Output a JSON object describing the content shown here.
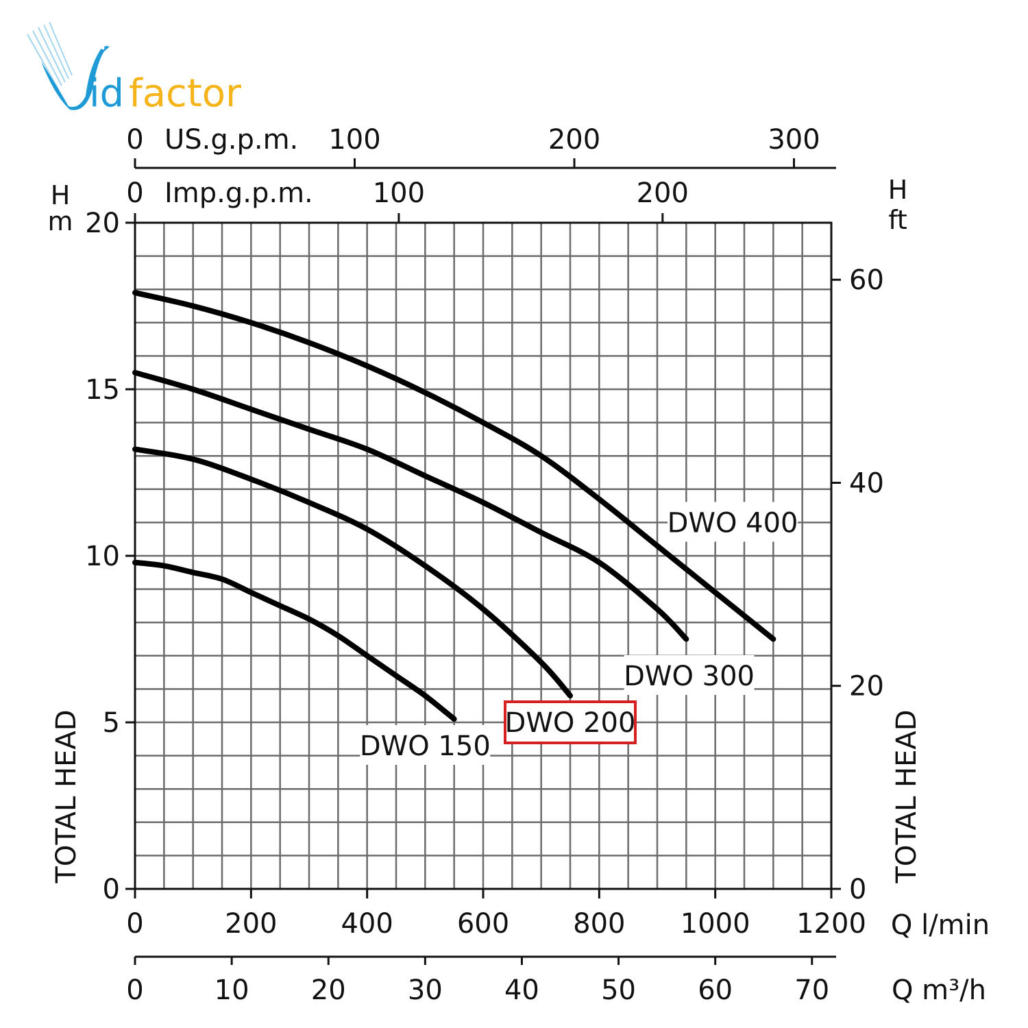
{
  "logo": {
    "text_prefix": "V",
    "text_blue": "id",
    "text_orange": "factor",
    "colors": {
      "blue": "#1E9BD7",
      "orange": "#F4B41A"
    }
  },
  "highlight": {
    "label": "DWO 200",
    "color": "#D42020"
  },
  "chart_data": {
    "type": "line",
    "title": "",
    "xlabel": "Q l/min",
    "ylabel": "H m — TOTAL HEAD",
    "xlim": [
      0,
      1200
    ],
    "ylim": [
      0,
      20
    ],
    "grid": true,
    "grid_step": {
      "x": 50,
      "y": 1
    },
    "x_ticks": [
      0,
      200,
      400,
      600,
      800,
      1000,
      1200
    ],
    "y_ticks": [
      0,
      5,
      10,
      15,
      20
    ],
    "secondary_axes": {
      "top_us": {
        "label": "US.g.p.m.",
        "ticks": [
          0,
          100,
          200,
          300
        ]
      },
      "top_imp": {
        "label": "Imp.g.p.m.",
        "ticks": [
          0,
          100,
          200
        ]
      },
      "bottom_m3h": {
        "label": "Q m³/h",
        "ticks": [
          0,
          10,
          20,
          30,
          40,
          50,
          60,
          70
        ]
      },
      "right_ft": {
        "label_top": "H",
        "label_unit": "ft",
        "ticks": [
          0,
          20,
          40,
          60
        ]
      }
    },
    "axis_labels": {
      "left_h": "H",
      "left_unit": "m",
      "left_vertical": "TOTAL HEAD",
      "right_vertical": "TOTAL HEAD",
      "bottom_q": "Q  l/min",
      "bottom_q2": "Q  m³/h"
    },
    "series": [
      {
        "name": "DWO 400",
        "x": [
          0,
          100,
          200,
          300,
          400,
          500,
          600,
          700,
          800,
          900,
          1000,
          1100
        ],
        "values": [
          17.9,
          17.5,
          17.0,
          16.4,
          15.7,
          14.9,
          14.0,
          13.0,
          11.7,
          10.3,
          8.9,
          7.5
        ]
      },
      {
        "name": "DWO 300",
        "x": [
          0,
          100,
          200,
          300,
          400,
          500,
          600,
          700,
          800,
          900,
          950
        ],
        "values": [
          15.5,
          15.0,
          14.4,
          13.8,
          13.2,
          12.4,
          11.6,
          10.7,
          9.8,
          8.4,
          7.5
        ]
      },
      {
        "name": "DWO 200",
        "x": [
          0,
          100,
          200,
          300,
          400,
          500,
          600,
          700,
          750
        ],
        "values": [
          13.2,
          12.9,
          12.3,
          11.6,
          10.8,
          9.7,
          8.4,
          6.8,
          5.8
        ]
      },
      {
        "name": "DWO 150",
        "x": [
          0,
          50,
          100,
          150,
          200,
          250,
          300,
          350,
          400,
          450,
          500,
          550
        ],
        "values": [
          9.8,
          9.7,
          9.5,
          9.3,
          8.9,
          8.5,
          8.1,
          7.6,
          7.0,
          6.4,
          5.8,
          5.1
        ]
      }
    ],
    "series_labels": [
      {
        "name": "DWO 400",
        "text": "DWO  400",
        "q": 1030,
        "h": 11.0
      },
      {
        "name": "DWO 300",
        "text": "DWO  300",
        "q": 955,
        "h": 6.4
      },
      {
        "name": "DWO 200",
        "text": "DWO  200",
        "q": 750,
        "h": 5.0
      },
      {
        "name": "DWO 150",
        "text": "DWO  150",
        "q": 500,
        "h": 4.3
      }
    ]
  }
}
